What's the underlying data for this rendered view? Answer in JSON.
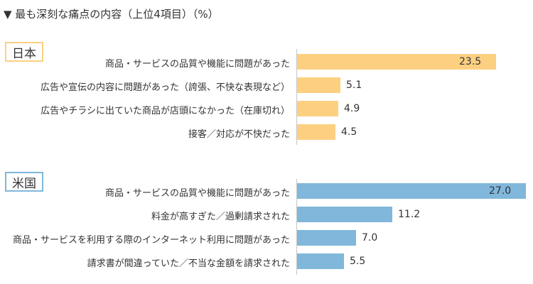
{
  "title": "▼ 最も深刻な痛点の内容（上位4項目）（%）",
  "colors": {
    "japan": "#fdd081",
    "us": "#80b7db"
  },
  "chart_data": [
    {
      "type": "bar",
      "orientation": "horizontal",
      "group_label": "日本",
      "categories": [
        "商品・サービスの品質や機能に問題があった",
        "広告や宣伝の内容に問題があった（誇張、不快な表現など）",
        "広告やチラシに出ていた商品が店頭になかった（在庫切れ）",
        "接客／対応が不快だった"
      ],
      "values": [
        23.5,
        5.1,
        4.9,
        4.5
      ],
      "value_labels": [
        "23.5",
        "5.1",
        "4.9",
        "4.5"
      ],
      "xlim": [
        0,
        27
      ],
      "grid": false
    },
    {
      "type": "bar",
      "orientation": "horizontal",
      "group_label": "米国",
      "categories": [
        "商品・サービスの品質や機能に問題があった",
        "料金が高すぎた／過剰請求された",
        "商品・サービスを利用する際のインターネット利用に問題があった",
        "請求書が間違っていた／不当な金額を請求された"
      ],
      "values": [
        27.0,
        11.2,
        7.0,
        5.5
      ],
      "value_labels": [
        "27.0",
        "11.2",
        "7.0",
        "5.5"
      ],
      "xlim": [
        0,
        27
      ],
      "grid": false
    }
  ]
}
